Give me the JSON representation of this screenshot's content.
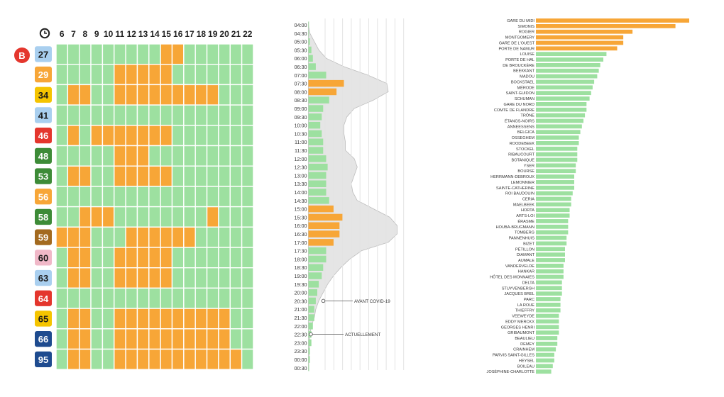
{
  "colors": {
    "green": "#9de0a0",
    "orange": "#f7a637",
    "grid_line": "#ffffff",
    "density_fill": "#e5e5e5",
    "density_stroke": "#bdbdbd",
    "b_badge": "#e4362d",
    "text": "#333333"
  },
  "chart_data": [
    {
      "type": "heatmap",
      "header_icon": "clock-icon",
      "b_badge": "B",
      "hours": [
        "6",
        "7",
        "8",
        "9",
        "10",
        "11",
        "12",
        "13",
        "14",
        "15",
        "16",
        "17",
        "18",
        "19",
        "20",
        "21",
        "22"
      ],
      "lines": [
        {
          "label": "27",
          "badge_color": "#a9cfef",
          "text_color": "#1a1a1a",
          "orange": [
            [
              15,
              17
            ]
          ]
        },
        {
          "label": "29",
          "badge_color": "#f7a637",
          "text_color": "#ffffff",
          "orange": [
            [
              11,
              16
            ]
          ]
        },
        {
          "label": "34",
          "badge_color": "#f5c400",
          "text_color": "#1a1a1a",
          "orange": [
            [
              7,
              9
            ],
            [
              11,
              20
            ]
          ]
        },
        {
          "label": "41",
          "badge_color": "#a9cfef",
          "text_color": "#1a1a1a",
          "orange": []
        },
        {
          "label": "46",
          "badge_color": "#e4362d",
          "text_color": "#ffffff",
          "orange": [
            [
              7,
              8
            ],
            [
              9,
              16
            ]
          ]
        },
        {
          "label": "48",
          "badge_color": "#3d8b37",
          "text_color": "#ffffff",
          "orange": [
            [
              11,
              14
            ]
          ]
        },
        {
          "label": "53",
          "badge_color": "#3d8b37",
          "text_color": "#ffffff",
          "orange": [
            [
              7,
              9
            ],
            [
              11,
              16
            ]
          ]
        },
        {
          "label": "56",
          "badge_color": "#f7a637",
          "text_color": "#ffffff",
          "orange": []
        },
        {
          "label": "58",
          "badge_color": "#3d8b37",
          "text_color": "#ffffff",
          "orange": [
            [
              8,
              11
            ],
            [
              19,
              20
            ]
          ]
        },
        {
          "label": "59",
          "badge_color": "#a36a1f",
          "text_color": "#ffffff",
          "orange": [
            [
              6,
              9
            ],
            [
              12,
              18
            ]
          ]
        },
        {
          "label": "60",
          "badge_color": "#f0b8c8",
          "text_color": "#1a1a1a",
          "orange": [
            [
              7,
              9
            ],
            [
              11,
              16
            ]
          ]
        },
        {
          "label": "63",
          "badge_color": "#a9cfef",
          "text_color": "#1a1a1a",
          "orange": [
            [
              7,
              9
            ],
            [
              11,
              16
            ]
          ]
        },
        {
          "label": "64",
          "badge_color": "#e4362d",
          "text_color": "#ffffff",
          "orange": []
        },
        {
          "label": "65",
          "badge_color": "#f5c400",
          "text_color": "#1a1a1a",
          "orange": [
            [
              7,
              9
            ],
            [
              11,
              21
            ]
          ]
        },
        {
          "label": "66",
          "badge_color": "#1e4b8f",
          "text_color": "#ffffff",
          "orange": [
            [
              7,
              9
            ],
            [
              11,
              21
            ]
          ]
        },
        {
          "label": "95",
          "badge_color": "#1e4b8f",
          "text_color": "#ffffff",
          "orange": [
            [
              7,
              9
            ],
            [
              11,
              22
            ]
          ]
        }
      ]
    },
    {
      "type": "bar",
      "orientation": "horizontal",
      "categories": [
        "04:00",
        "04:30",
        "05:00",
        "05:30",
        "06:00",
        "06:30",
        "07:00",
        "07:30",
        "08:00",
        "08:30",
        "09:00",
        "09:30",
        "10:00",
        "10:30",
        "11:00",
        "11:30",
        "12:00",
        "12:30",
        "13:00",
        "13:30",
        "14:00",
        "14:30",
        "15:00",
        "15:30",
        "16:00",
        "16:30",
        "17:00",
        "17:30",
        "18:00",
        "18:30",
        "19:00",
        "19:30",
        "20:00",
        "20:30",
        "21:00",
        "21:30",
        "22:00",
        "22:30",
        "23:00",
        "23:30",
        "00:00",
        "00:30"
      ],
      "series": [
        {
          "values": [
            0,
            0,
            1,
            2,
            3,
            5,
            12,
            24,
            19,
            14,
            10,
            9,
            8,
            9,
            10,
            10,
            12,
            13,
            12,
            12,
            12,
            14,
            17,
            23,
            21,
            21,
            17,
            12,
            12,
            10,
            9,
            7,
            6,
            5,
            4,
            4,
            3,
            2,
            2,
            1,
            1,
            0.5
          ],
          "highlight": [
            "07:30",
            "08:00",
            "15:00",
            "15:30",
            "16:00",
            "16:30",
            "17:00"
          ]
        },
        {
          "values": [
            0,
            1,
            4,
            7,
            12,
            24,
            40,
            53,
            54,
            44,
            31,
            26,
            24,
            24,
            25,
            25,
            31,
            33,
            31,
            29,
            30,
            33,
            44,
            55,
            60,
            60,
            54,
            36,
            28,
            22,
            17,
            13,
            10,
            7,
            5,
            4,
            2,
            1,
            1,
            0.5,
            0.5,
            0
          ]
        }
      ],
      "xlim": [
        0,
        60
      ],
      "annotations": [
        {
          "text": "AVANT COVID-19",
          "at": "20:30"
        },
        {
          "text": "ACTUELLEMENT",
          "at": "22:30"
        }
      ]
    },
    {
      "type": "bar",
      "orientation": "horizontal",
      "categories": [
        "GARE DU MIDI",
        "SIMONIS",
        "ROGIER",
        "MONTGOMERY",
        "GARE DE L'OUEST",
        "PORTE DE NAMUR",
        "LOUISE",
        "PORTE DE HAL",
        "DE BROUCKÈRE",
        "BEEKKANT",
        "MADOU",
        "BOCKSTAEL",
        "MÉRODE",
        "SAINT-GUIDON",
        "SCHUMAN",
        "GARE DU NORD",
        "COMTE DE FLANDRE",
        "TRÔNE",
        "ÉTANGS-NOIRS",
        "ANNEESSENS",
        "BELGICA",
        "OSSEGHEM",
        "ROODEBEEK",
        "STOCKEL",
        "RIBAUCOURT",
        "BOTANIQUE",
        "YSER",
        "BOURSE",
        "HERRMANN-DEBROUX",
        "LEMONNIER",
        "SAINTE-CATHERINE",
        "ROI BAUDOUIN",
        "CERIA",
        "MAELBEEK",
        "HORTA",
        "ARTS-LOI",
        "ÉRASME",
        "HOUBA-BRUGMANN",
        "TOMBERG",
        "PANNENHUIS",
        "BIZET",
        "PÉTILLON",
        "DIAMANT",
        "AUMALE",
        "VANDERVELDE",
        "HANKAR",
        "HÔTEL DES MONNAIES",
        "DELTA",
        "STUYVENBERGH",
        "JACQUES BREL",
        "PARC",
        "LA ROUE",
        "THIEFFRY",
        "VEEWEYDE",
        "EDDY MERCKX",
        "GEORGES HENRI",
        "GRIBAUMONT",
        "BEAULIEU",
        "DEMEY",
        "CRAINHEM",
        "PARVIS SAINT-GILLES",
        "HEYSEL",
        "BOILEAU",
        "JOSÉPHINE-CHARLOTTE"
      ],
      "values": [
        100,
        91,
        63,
        57,
        57,
        53,
        46,
        44,
        42,
        41,
        40,
        38,
        37,
        36,
        35,
        33,
        33,
        32,
        31,
        30,
        29,
        28,
        28,
        27,
        27,
        27,
        26,
        26,
        25,
        25,
        25,
        24,
        23,
        23,
        22,
        22,
        21,
        21,
        21,
        20,
        20,
        19,
        19,
        19,
        18,
        18,
        18,
        17,
        17,
        17,
        16,
        16,
        16,
        15,
        15,
        15,
        15,
        14,
        14,
        13,
        12,
        12,
        11,
        10
      ],
      "highlight_count": 6,
      "xlim": [
        0,
        100
      ]
    }
  ]
}
